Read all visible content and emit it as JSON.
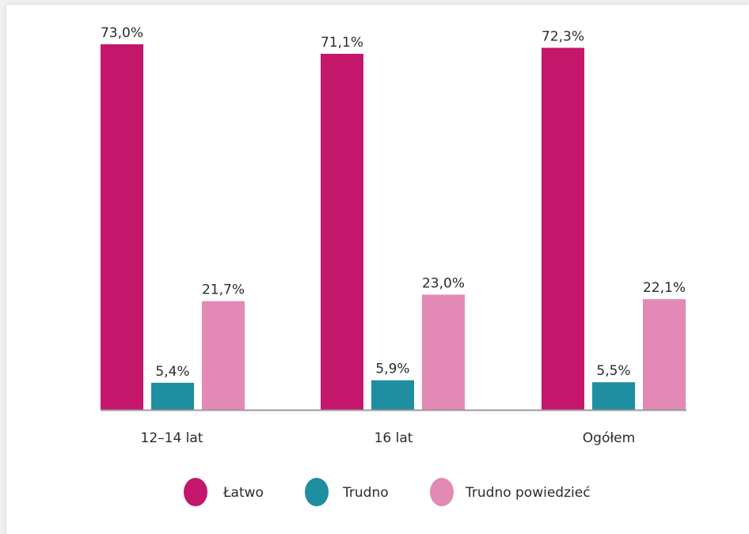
{
  "chart_data": {
    "type": "bar",
    "categories": [
      "12–14 lat",
      "16 lat",
      "Ogółem"
    ],
    "series": [
      {
        "name": "Łatwo",
        "color": "#c4166b",
        "values": [
          73.0,
          71.1,
          72.3
        ],
        "labels": [
          "73,0%",
          "71,1%",
          "72,3%"
        ]
      },
      {
        "name": "Trudno",
        "color": "#1e8ea0",
        "values": [
          5.4,
          5.9,
          5.5
        ],
        "labels": [
          "5,4%",
          "5,9%",
          "5,5%"
        ]
      },
      {
        "name": "Trudno powiedzieć",
        "color": "#e289b6",
        "values": [
          21.7,
          23.0,
          22.1
        ],
        "labels": [
          "21,7%",
          "23,0%",
          "22,1%"
        ]
      }
    ],
    "ylim": [
      0,
      100
    ],
    "grid": false,
    "legend_position": "bottom-center",
    "axis_color": "#9a9a9a"
  }
}
